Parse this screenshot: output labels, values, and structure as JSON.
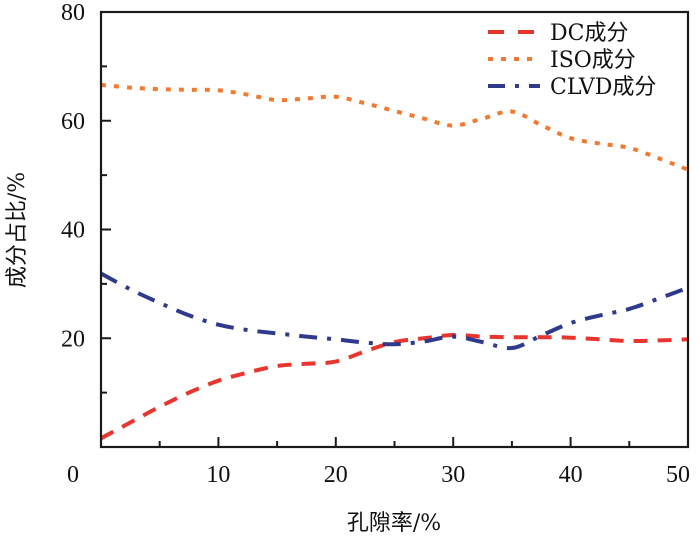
{
  "chart_data": {
    "type": "line",
    "title": "",
    "xlabel": "孔隙率/%",
    "ylabel": "成分占比/%",
    "xlim": [
      0,
      50
    ],
    "ylim": [
      0,
      80
    ],
    "xticks": [
      0,
      10,
      20,
      30,
      40,
      50
    ],
    "xtick_labels": [
      "0",
      "10",
      "20",
      "30",
      "40",
      "50"
    ],
    "xminor_ticks": [
      5,
      15,
      25,
      35,
      45
    ],
    "yticks": [
      20,
      40,
      60,
      80
    ],
    "ytick_labels": [
      "20",
      "40",
      "60",
      "80"
    ],
    "yminor_ticks": [
      10,
      30,
      50,
      70
    ],
    "grid": false,
    "legend_position": "top-right",
    "series": [
      {
        "name": "DC成分",
        "style": "dashed",
        "color": "#e8362f",
        "x": [
          0,
          2.5,
          5,
          7.5,
          10,
          12.5,
          15,
          17.5,
          20,
          22.5,
          25,
          27.5,
          30,
          32.5,
          35,
          37.5,
          40,
          42.5,
          45,
          47.5,
          50
        ],
        "y": [
          1.6,
          4.5,
          7.4,
          10.0,
          12.2,
          13.7,
          14.9,
          15.3,
          15.7,
          17.6,
          19.3,
          20.0,
          20.6,
          20.3,
          20.2,
          20.2,
          20.1,
          19.8,
          19.5,
          19.6,
          19.8
        ]
      },
      {
        "name": "ISO成分",
        "style": "dotted",
        "color": "#f07a30",
        "x": [
          0,
          2.5,
          5,
          7.5,
          10,
          12.5,
          15,
          17.5,
          20,
          22.5,
          25,
          27.5,
          30,
          32.5,
          35,
          37.5,
          40,
          42.5,
          45,
          47.5,
          50
        ],
        "y": [
          66.6,
          66.1,
          65.8,
          65.7,
          65.6,
          64.8,
          63.8,
          64.1,
          64.4,
          63.2,
          61.8,
          60.4,
          59.1,
          60.4,
          61.7,
          59.2,
          56.8,
          55.8,
          55.0,
          53.1,
          51.0
        ]
      },
      {
        "name": "CLVD成分",
        "style": "dash-dot",
        "color": "#2f3a8c",
        "x": [
          0,
          2.5,
          5,
          7.5,
          10,
          12.5,
          15,
          17.5,
          20,
          22.5,
          25,
          27.5,
          30,
          32.5,
          35,
          37.5,
          40,
          42.5,
          45,
          47.5,
          50
        ],
        "y": [
          31.9,
          29.0,
          26.5,
          24.2,
          22.5,
          21.5,
          20.9,
          20.3,
          19.8,
          19.2,
          18.9,
          19.4,
          20.3,
          19.3,
          18.2,
          20.5,
          22.8,
          24.2,
          25.4,
          27.3,
          29.3
        ]
      }
    ]
  }
}
